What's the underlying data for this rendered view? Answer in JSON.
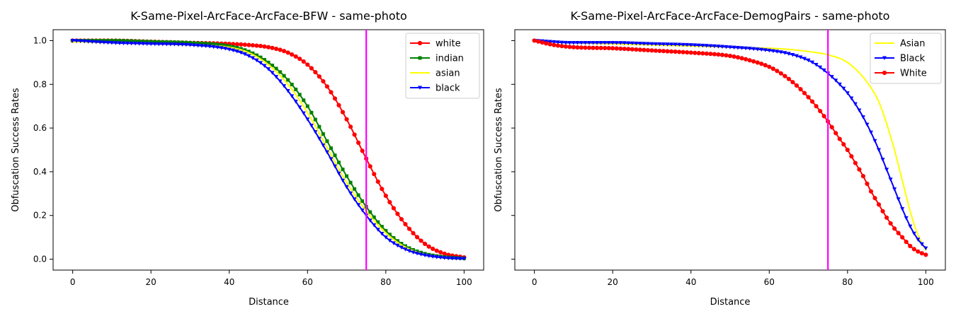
{
  "chart_data": [
    {
      "type": "line",
      "title": "K-Same-Pixel-ArcFace-ArcFace-BFW - same-photo",
      "xlabel": "Distance",
      "ylabel": "Obfuscation Success Rates",
      "xlim": [
        -5,
        105
      ],
      "ylim": [
        -0.05,
        1.05
      ],
      "xticks": [
        "0",
        "20",
        "40",
        "60",
        "80",
        "100"
      ],
      "yticks": [
        "0.0",
        "0.2",
        "0.4",
        "0.6",
        "0.8",
        "1.0"
      ],
      "vline": {
        "x": 75,
        "color": "#ff00ff"
      },
      "legend_position": "upper-right",
      "series": [
        {
          "name": "white",
          "color": "#ff0000",
          "marker": "circle",
          "x": [
            0,
            10,
            20,
            30,
            40,
            45,
            50,
            55,
            60,
            65,
            70,
            75,
            80,
            85,
            90,
            95,
            100
          ],
          "y": [
            1.0,
            1.0,
            0.995,
            0.99,
            0.985,
            0.98,
            0.97,
            0.945,
            0.89,
            0.79,
            0.64,
            0.46,
            0.29,
            0.16,
            0.07,
            0.025,
            0.008
          ]
        },
        {
          "name": "indian",
          "color": "#008000",
          "marker": "square",
          "x": [
            0,
            10,
            20,
            30,
            40,
            45,
            50,
            55,
            60,
            65,
            70,
            75,
            80,
            85,
            90,
            95,
            100
          ],
          "y": [
            1.0,
            1.0,
            0.995,
            0.99,
            0.975,
            0.95,
            0.9,
            0.82,
            0.7,
            0.54,
            0.38,
            0.24,
            0.13,
            0.06,
            0.025,
            0.01,
            0.004
          ]
        },
        {
          "name": "asian",
          "color": "#ffff00",
          "marker": "none",
          "x": [
            0,
            10,
            20,
            30,
            40,
            45,
            50,
            55,
            60,
            65,
            70,
            75,
            80,
            85,
            90,
            95,
            100
          ],
          "y": [
            0.995,
            0.99,
            0.985,
            0.98,
            0.97,
            0.945,
            0.89,
            0.8,
            0.67,
            0.51,
            0.35,
            0.22,
            0.12,
            0.055,
            0.022,
            0.008,
            0.003
          ]
        },
        {
          "name": "black",
          "color": "#0000ff",
          "marker": "triangle-down",
          "x": [
            0,
            10,
            20,
            30,
            40,
            45,
            50,
            55,
            60,
            65,
            70,
            75,
            80,
            85,
            90,
            95,
            100
          ],
          "y": [
            1.0,
            0.99,
            0.985,
            0.98,
            0.96,
            0.93,
            0.87,
            0.77,
            0.64,
            0.49,
            0.33,
            0.2,
            0.1,
            0.045,
            0.018,
            0.006,
            0.002
          ]
        }
      ]
    },
    {
      "type": "line",
      "title": "K-Same-Pixel-ArcFace-ArcFace-DemogPairs - same-photo",
      "xlabel": "Distance",
      "ylabel": "Obfuscation Success Rates",
      "xlim": [
        -5,
        105
      ],
      "ylim": [
        -0.05,
        1.05
      ],
      "xticks": [
        "0",
        "20",
        "40",
        "60",
        "80",
        "100"
      ],
      "yticks": [
        "0.0",
        "0.2",
        "0.4",
        "0.6",
        "0.8",
        "1.0"
      ],
      "vline": {
        "x": 75,
        "color": "#ff00ff"
      },
      "legend_position": "upper-right",
      "series": [
        {
          "name": "Asian",
          "color": "#ffff00",
          "marker": "none",
          "x": [
            0,
            10,
            20,
            30,
            40,
            50,
            60,
            65,
            70,
            75,
            80,
            85,
            88,
            90,
            92,
            94,
            96,
            98,
            100
          ],
          "y": [
            1.0,
            0.99,
            0.985,
            0.98,
            0.975,
            0.97,
            0.965,
            0.96,
            0.95,
            0.935,
            0.9,
            0.81,
            0.72,
            0.62,
            0.5,
            0.36,
            0.22,
            0.11,
            0.04
          ]
        },
        {
          "name": "Black",
          "color": "#0000ff",
          "marker": "triangle-down",
          "x": [
            0,
            10,
            20,
            30,
            40,
            50,
            60,
            65,
            70,
            72,
            75,
            78,
            80,
            82,
            84,
            86,
            88,
            90,
            92,
            94,
            96,
            98,
            100
          ],
          "y": [
            1.0,
            0.99,
            0.99,
            0.985,
            0.98,
            0.97,
            0.955,
            0.94,
            0.91,
            0.89,
            0.85,
            0.8,
            0.76,
            0.71,
            0.65,
            0.58,
            0.5,
            0.41,
            0.32,
            0.23,
            0.15,
            0.09,
            0.05
          ]
        },
        {
          "name": "White",
          "color": "#ff0000",
          "marker": "circle",
          "x": [
            0,
            5,
            10,
            20,
            30,
            40,
            50,
            55,
            60,
            63,
            66,
            69,
            72,
            75,
            78,
            80,
            82,
            84,
            86,
            88,
            90,
            92,
            94,
            96,
            98,
            100
          ],
          "y": [
            1.0,
            0.98,
            0.97,
            0.965,
            0.955,
            0.945,
            0.93,
            0.91,
            0.88,
            0.85,
            0.81,
            0.76,
            0.7,
            0.63,
            0.55,
            0.5,
            0.44,
            0.38,
            0.31,
            0.25,
            0.19,
            0.14,
            0.1,
            0.06,
            0.035,
            0.02
          ]
        }
      ]
    }
  ]
}
